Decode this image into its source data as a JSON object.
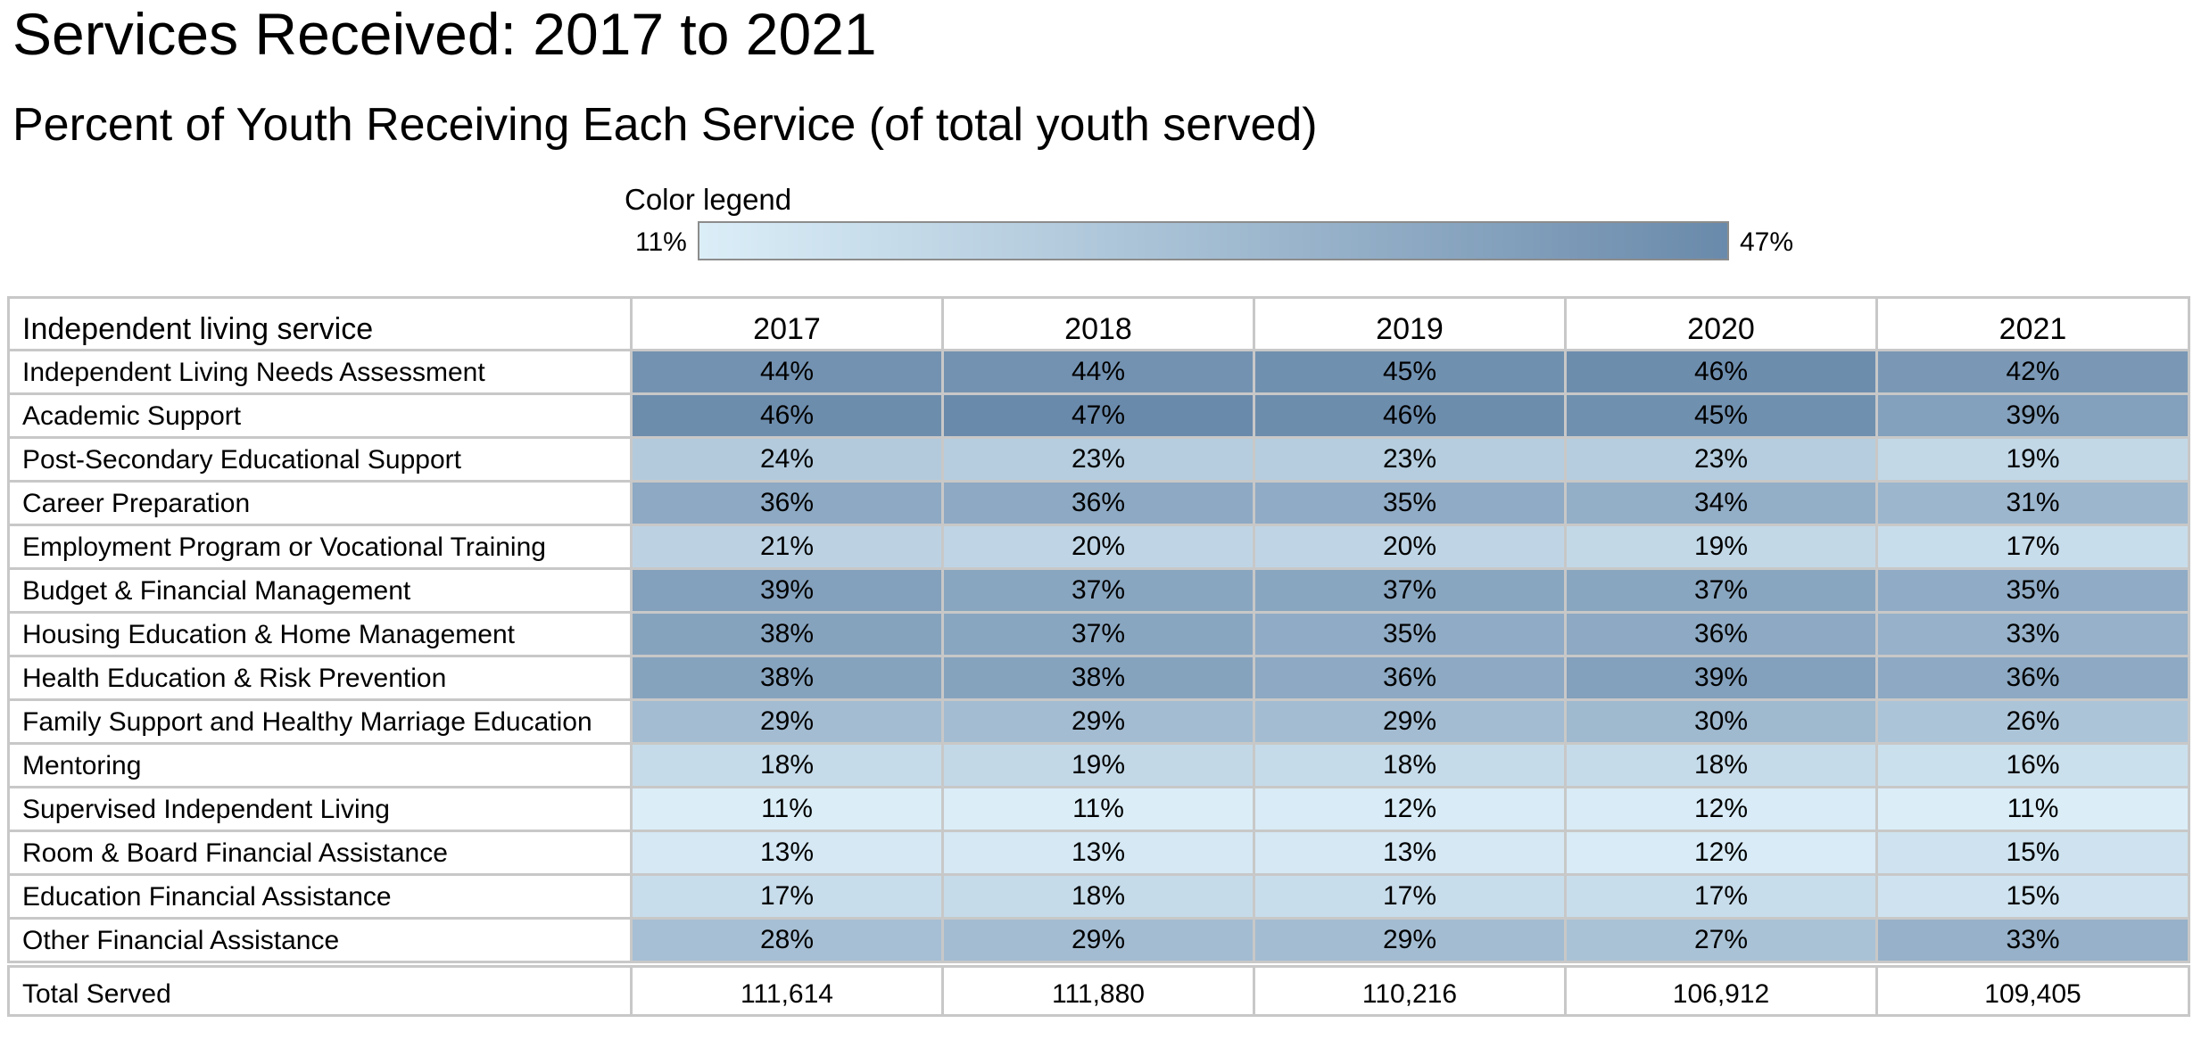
{
  "title": "Services Received: 2017 to 2021",
  "subtitle": "Percent of Youth Receiving Each Service (of total youth served)",
  "legend": {
    "title": "Color legend",
    "min_label": "11%",
    "max_label": "47%",
    "min_value": 11,
    "max_value": 47,
    "min_color": "#dbeef8",
    "max_color": "#6a8aab"
  },
  "chart_data": {
    "type": "heatmap",
    "row_header": "Independent living service",
    "x": [
      "2017",
      "2018",
      "2019",
      "2020",
      "2021"
    ],
    "rows": [
      {
        "label": "Independent Living Needs Assessment",
        "values": [
          44,
          44,
          45,
          46,
          42
        ]
      },
      {
        "label": "Academic Support",
        "values": [
          46,
          47,
          46,
          45,
          39
        ]
      },
      {
        "label": "Post-Secondary Educational Support",
        "values": [
          24,
          23,
          23,
          23,
          19
        ]
      },
      {
        "label": "Career Preparation",
        "values": [
          36,
          36,
          35,
          34,
          31
        ]
      },
      {
        "label": "Employment Program or Vocational Training",
        "values": [
          21,
          20,
          20,
          19,
          17
        ]
      },
      {
        "label": "Budget & Financial Management",
        "values": [
          39,
          37,
          37,
          37,
          35
        ]
      },
      {
        "label": "Housing Education & Home Management",
        "values": [
          38,
          37,
          35,
          36,
          33
        ]
      },
      {
        "label": "Health Education & Risk Prevention",
        "values": [
          38,
          38,
          36,
          39,
          36
        ]
      },
      {
        "label": "Family Support and Healthy Marriage Education",
        "values": [
          29,
          29,
          29,
          30,
          26
        ]
      },
      {
        "label": "Mentoring",
        "values": [
          18,
          19,
          18,
          18,
          16
        ]
      },
      {
        "label": "Supervised Independent Living",
        "values": [
          11,
          11,
          12,
          12,
          11
        ]
      },
      {
        "label": "Room & Board Financial Assistance",
        "values": [
          13,
          13,
          13,
          12,
          15
        ]
      },
      {
        "label": "Education Financial Assistance",
        "values": [
          17,
          18,
          17,
          17,
          15
        ]
      },
      {
        "label": "Other Financial Assistance",
        "values": [
          28,
          29,
          29,
          27,
          33
        ]
      }
    ],
    "value_suffix": "%",
    "total_row": {
      "label": "Total Served",
      "values": [
        "111,614",
        "111,880",
        "110,216",
        "106,912",
        "109,405"
      ]
    }
  }
}
